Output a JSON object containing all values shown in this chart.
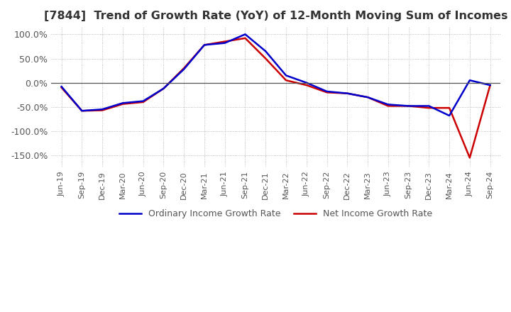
{
  "title": "[7844]  Trend of Growth Rate (YoY) of 12-Month Moving Sum of Incomes",
  "title_fontsize": 11.5,
  "line1_color": "#0000CC",
  "line2_color": "#CC0000",
  "line1_label": "Ordinary Income Growth Rate",
  "line2_label": "Net Income Growth Rate",
  "background_color": "#FFFFFF",
  "grid_color": "#AAAAAA",
  "ylim": [
    -1.75,
    1.15
  ],
  "yticks": [
    1.0,
    0.5,
    0.0,
    -0.5,
    -1.0,
    -1.5
  ],
  "ytick_labels": [
    "100.0%",
    "50.0%",
    "0.0%",
    "-50.0%",
    "-100.0%",
    "-150.0%"
  ],
  "dates": [
    "Jun-19",
    "Sep-19",
    "Dec-19",
    "Mar-20",
    "Jun-20",
    "Sep-20",
    "Dec-20",
    "Mar-21",
    "Jun-21",
    "Sep-21",
    "Dec-21",
    "Mar-22",
    "Jun-22",
    "Sep-22",
    "Dec-22",
    "Mar-23",
    "Jun-23",
    "Sep-23",
    "Dec-23",
    "Mar-24",
    "Jun-24",
    "Sep-24"
  ],
  "ordinary_income_gr": [
    -0.08,
    -0.58,
    -0.55,
    -0.42,
    -0.38,
    -0.12,
    0.28,
    0.78,
    0.82,
    1.0,
    0.65,
    0.15,
    0.0,
    -0.18,
    -0.22,
    -0.3,
    -0.45,
    -0.48,
    -0.48,
    -0.68,
    0.05,
    -0.05
  ],
  "net_income_gr": [
    -0.1,
    -0.58,
    -0.57,
    -0.44,
    -0.4,
    -0.12,
    0.3,
    0.78,
    0.85,
    0.92,
    0.5,
    0.05,
    -0.05,
    -0.2,
    -0.22,
    -0.3,
    -0.48,
    -0.48,
    -0.52,
    -0.52,
    -1.55,
    -0.05
  ]
}
